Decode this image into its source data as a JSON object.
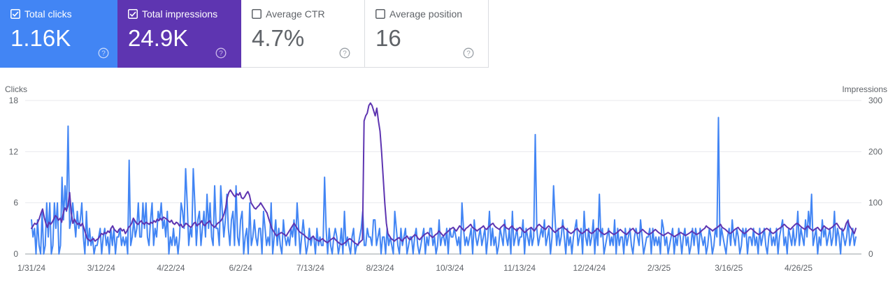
{
  "cards": [
    {
      "id": "clicks",
      "label": "Total clicks",
      "value": "1.16K",
      "checked": true,
      "color": "#4285f4"
    },
    {
      "id": "impressions",
      "label": "Total impressions",
      "value": "24.9K",
      "checked": true,
      "color": "#5e35b1"
    },
    {
      "id": "ctr",
      "label": "Average CTR",
      "value": "4.7%",
      "checked": false
    },
    {
      "id": "position",
      "label": "Average position",
      "value": "16",
      "checked": false
    }
  ],
  "chart_data": {
    "type": "line",
    "left_axis_label": "Clicks",
    "right_axis_label": "Impressions",
    "left_ticks": [
      0,
      6,
      12,
      18
    ],
    "right_ticks": [
      0,
      100,
      200,
      300
    ],
    "left_ylim": [
      0,
      18
    ],
    "right_ylim": [
      0,
      300
    ],
    "x_tick_labels": [
      "1/31/24",
      "3/12/24",
      "4/22/24",
      "6/2/24",
      "7/13/24",
      "8/23/24",
      "10/3/24",
      "11/13/24",
      "12/24/24",
      "2/3/25",
      "3/16/25",
      "4/26/25"
    ],
    "grid": true,
    "series": [
      {
        "name": "Clicks",
        "axis": "left",
        "color": "#4285f4",
        "values": [
          4,
          2,
          3,
          0,
          4,
          1,
          0,
          5,
          0,
          1,
          6,
          2,
          6,
          0,
          1,
          6,
          3,
          6,
          0,
          1,
          9,
          4,
          8,
          5,
          15,
          3,
          4,
          6,
          4,
          2,
          5,
          3,
          4,
          6,
          2,
          0,
          5,
          1,
          3,
          1,
          2,
          0,
          1,
          1,
          2,
          3,
          0,
          2,
          3,
          1,
          2,
          0,
          3,
          1,
          3,
          0,
          2,
          2,
          3,
          1,
          2,
          1,
          2,
          0,
          11,
          1,
          2,
          4,
          2,
          3,
          6,
          2,
          2,
          6,
          3,
          6,
          2,
          1,
          4,
          6,
          1,
          3,
          2,
          5,
          4,
          6,
          3,
          4,
          2,
          5,
          0,
          2,
          1,
          3,
          1,
          2,
          0,
          2,
          6,
          5,
          3,
          10,
          6,
          1,
          3,
          2,
          10,
          6,
          1,
          4,
          5,
          1,
          3,
          5,
          2,
          7,
          3,
          6,
          2,
          1,
          8,
          3,
          3,
          1,
          8,
          5,
          2,
          4,
          7,
          3,
          1,
          4,
          5,
          1,
          8,
          2,
          1,
          4,
          5,
          0,
          2,
          3,
          0,
          6,
          1,
          2,
          4,
          2,
          1,
          3,
          3,
          0,
          5,
          3,
          1,
          2,
          1,
          6,
          0,
          2,
          4,
          1,
          3,
          1,
          0,
          4,
          2,
          1,
          2,
          1,
          3,
          2,
          4,
          1,
          6,
          3,
          0,
          2,
          4,
          2,
          0,
          1,
          3,
          1,
          2,
          2,
          0,
          3,
          1,
          2,
          1,
          1,
          9,
          3,
          0,
          3,
          1,
          0,
          2,
          3,
          2,
          0,
          1,
          3,
          0,
          5,
          1,
          2,
          1,
          0,
          2,
          3,
          0,
          1,
          1,
          2,
          3,
          5,
          1,
          1,
          3,
          2,
          2,
          1,
          4,
          4,
          1,
          2,
          3,
          0,
          2,
          2,
          0,
          3,
          1,
          2,
          1,
          0,
          5,
          3,
          1,
          0,
          3,
          1,
          2,
          3,
          0,
          1,
          2,
          2,
          0,
          2,
          3,
          1,
          0,
          1,
          2,
          3,
          0,
          2,
          1,
          3,
          3,
          1,
          2,
          0,
          1,
          4,
          1,
          2,
          2,
          1,
          3,
          0,
          3,
          2,
          2,
          3,
          2,
          1,
          2,
          0,
          6,
          3,
          1,
          2,
          1,
          2,
          3,
          0,
          4,
          2,
          1,
          2,
          3,
          1,
          2,
          3,
          0,
          2,
          5,
          1,
          3,
          1,
          2,
          0,
          1,
          3,
          2,
          1,
          4,
          2,
          1,
          3,
          0,
          5,
          1,
          2,
          3,
          1,
          2,
          2,
          4,
          0,
          3,
          2,
          1,
          3,
          1,
          2,
          14,
          3,
          1,
          2,
          3,
          2,
          4,
          1,
          2,
          3,
          0,
          2,
          8,
          4,
          1,
          3,
          1,
          2,
          4,
          2,
          0,
          3,
          1,
          2,
          0,
          2,
          3,
          4,
          1,
          2,
          3,
          0,
          5,
          2,
          1,
          3,
          1,
          2,
          4,
          0,
          3,
          1,
          7,
          2,
          3,
          0,
          1,
          2,
          3,
          1,
          2,
          1,
          4,
          0,
          3,
          1,
          2,
          2,
          0,
          3,
          1,
          2,
          3,
          1,
          0,
          2,
          3,
          2,
          1,
          4,
          2,
          0,
          1,
          2,
          2,
          3,
          0,
          3,
          1,
          2,
          1,
          2,
          0,
          4,
          3,
          1,
          2,
          0,
          1,
          2,
          3,
          0,
          2,
          1,
          3,
          2,
          0,
          2,
          3,
          1,
          2,
          0,
          1,
          3,
          1,
          3,
          2,
          0,
          3,
          2,
          1,
          2,
          0,
          1,
          3,
          2,
          0,
          1,
          3,
          2,
          16,
          1,
          3,
          2,
          1,
          0,
          2,
          3,
          1,
          4,
          2,
          1,
          3,
          2,
          0,
          1,
          3,
          2,
          3,
          0,
          2,
          2,
          1,
          3,
          1,
          2,
          0,
          3,
          1,
          2,
          3,
          1,
          0,
          2,
          3,
          1,
          2,
          1,
          3,
          0,
          2,
          3,
          4,
          1,
          2,
          0,
          3,
          2,
          1,
          3,
          1,
          2,
          5,
          1,
          3,
          2,
          1,
          4,
          2,
          5,
          3,
          7,
          1,
          2,
          3,
          0,
          2,
          1,
          4,
          2,
          3,
          1,
          2,
          3,
          1,
          2,
          5,
          1,
          3,
          2,
          0,
          3,
          2,
          1,
          2,
          4,
          1,
          2,
          3,
          1,
          2
        ]
      },
      {
        "name": "Impressions",
        "axis": "right",
        "color": "#5e35b1",
        "values": [
          50,
          55,
          60,
          58,
          62,
          70,
          80,
          88,
          72,
          60,
          52,
          62,
          58,
          62,
          68,
          75,
          72,
          66,
          70,
          62,
          80,
          90,
          85,
          95,
          120,
          80,
          60,
          68,
          62,
          58,
          60,
          55,
          60,
          50,
          40,
          30,
          28,
          25,
          28,
          30,
          25,
          28,
          30,
          35,
          40,
          38,
          42,
          40,
          45,
          42,
          50,
          55,
          48,
          45,
          42,
          48,
          50,
          45,
          48,
          40,
          45,
          52,
          55,
          60,
          70,
          65,
          60,
          58,
          62,
          65,
          60,
          58,
          62,
          60,
          58,
          62,
          60,
          65,
          62,
          68,
          65,
          70,
          66,
          72,
          70,
          68,
          65,
          62,
          66,
          60,
          58,
          62,
          60,
          55,
          58,
          52,
          55,
          60,
          58,
          55,
          52,
          55,
          60,
          62,
          55,
          58,
          60,
          65,
          58,
          55,
          60,
          62,
          65,
          58,
          55,
          52,
          56,
          60,
          62,
          65,
          70,
          78,
          90,
          110,
          120,
          125,
          120,
          115,
          112,
          118,
          115,
          120,
          110,
          108,
          112,
          118,
          122,
          115,
          100,
          95,
          90,
          88,
          92,
          95,
          100,
          95,
          90,
          85,
          80,
          70,
          60,
          50,
          45,
          40,
          35,
          38,
          40,
          42,
          40,
          38,
          35,
          40,
          45,
          50,
          55,
          60,
          55,
          50,
          45,
          42,
          40,
          38,
          35,
          32,
          30,
          28,
          32,
          35,
          30,
          28,
          26,
          25,
          28,
          30,
          26,
          24,
          22,
          25,
          28,
          30,
          32,
          28,
          25,
          22,
          20,
          18,
          20,
          22,
          25,
          28,
          30,
          28,
          25,
          22,
          20,
          18,
          22,
          25,
          28,
          260,
          270,
          275,
          290,
          295,
          290,
          280,
          270,
          285,
          260,
          240,
          200,
          150,
          100,
          60,
          40,
          35,
          30,
          28,
          25,
          28,
          30,
          32,
          28,
          25,
          30,
          32,
          35,
          30,
          28,
          32,
          35,
          38,
          35,
          30,
          28,
          32,
          35,
          38,
          40,
          42,
          38,
          35,
          32,
          35,
          38,
          40,
          45,
          42,
          38,
          35,
          40,
          42,
          45,
          48,
          50,
          52,
          48,
          45,
          50,
          55,
          52,
          48,
          45,
          50,
          52,
          55,
          58,
          52,
          50,
          48,
          45,
          48,
          50,
          52,
          55,
          50,
          48,
          52,
          55,
          58,
          60,
          55,
          52,
          50,
          48,
          52,
          55,
          58,
          52,
          50,
          48,
          52,
          55,
          50,
          48,
          45,
          50,
          52,
          48,
          45,
          42,
          45,
          48,
          50,
          52,
          48,
          45,
          50,
          55,
          58,
          55,
          52,
          50,
          48,
          52,
          55,
          52,
          48,
          45,
          42,
          45,
          48,
          50,
          52,
          55,
          50,
          48,
          45,
          42,
          40,
          42,
          45,
          48,
          50,
          45,
          42,
          40,
          42,
          45,
          48,
          45,
          42,
          40,
          42,
          45,
          48,
          50,
          45,
          42,
          40,
          38,
          40,
          42,
          45,
          42,
          40,
          38,
          40,
          42,
          45,
          48,
          45,
          42,
          40,
          38,
          42,
          45,
          48,
          50,
          45,
          42,
          40,
          42,
          45,
          48,
          45,
          42,
          40,
          38,
          40,
          42,
          45,
          48,
          45,
          42,
          40,
          38,
          36,
          38,
          40,
          42,
          40,
          38,
          36,
          34,
          36,
          38,
          40,
          42,
          40,
          38,
          36,
          38,
          40,
          42,
          45,
          42,
          40,
          38,
          40,
          42,
          45,
          48,
          50,
          55,
          52,
          50,
          48,
          45,
          48,
          50,
          52,
          55,
          58,
          52,
          50,
          48,
          45,
          42,
          40,
          42,
          45,
          48,
          50,
          52,
          48,
          45,
          42,
          40,
          42,
          45,
          48,
          50,
          48,
          45,
          42,
          40,
          38,
          40,
          42,
          45,
          48,
          50,
          48,
          45,
          42,
          40,
          42,
          45,
          48,
          50,
          52,
          55,
          58,
          55,
          52,
          50,
          48,
          52,
          55,
          58,
          60,
          58,
          55,
          52,
          50,
          48,
          52,
          55,
          50,
          48,
          45,
          48,
          50,
          52,
          48,
          45,
          50,
          55,
          52,
          50,
          48,
          50,
          52,
          55,
          58,
          60,
          55,
          50,
          48,
          45,
          50,
          60,
          65,
          55,
          50,
          45,
          40,
          50
        ]
      }
    ]
  }
}
